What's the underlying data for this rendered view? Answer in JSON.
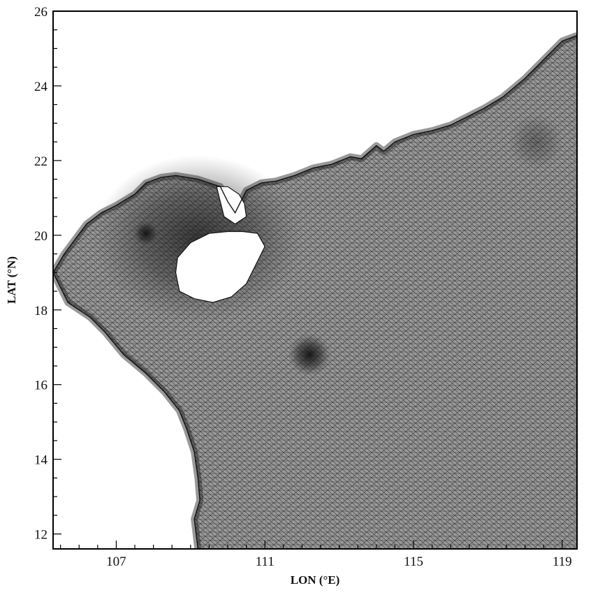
{
  "map": {
    "x_axis": {
      "label": "LON (°E)",
      "min": 105.3,
      "max": 119.4,
      "major_ticks": [
        107,
        111,
        115,
        119
      ],
      "minor_step": 0.5
    },
    "y_axis": {
      "label": "LAT (°N)",
      "min": 11.6,
      "max": 26,
      "major_ticks": [
        12,
        14,
        16,
        18,
        20,
        22,
        24,
        26
      ],
      "minor_step": 0.5
    },
    "mesh": {
      "type": "unstructured triangular grid",
      "line_color": "#2a2a2a",
      "water_fill": "#8c8c8c",
      "land_fill": "#ffffff",
      "refinement_centers": [
        {
          "lon": 107.8,
          "lat": 20.05
        },
        {
          "lon": 112.2,
          "lat": 16.8
        },
        {
          "lon": 118.3,
          "lat": 22.5
        }
      ]
    },
    "coastline_north": [
      [
        119.4,
        25.35
      ],
      [
        119.0,
        25.2
      ],
      [
        118.7,
        24.9
      ],
      [
        118.4,
        24.6
      ],
      [
        118.0,
        24.2
      ],
      [
        117.4,
        23.7
      ],
      [
        116.9,
        23.4
      ],
      [
        116.5,
        23.2
      ],
      [
        116.0,
        22.95
      ],
      [
        115.5,
        22.8
      ],
      [
        115.0,
        22.7
      ],
      [
        114.5,
        22.5
      ],
      [
        114.2,
        22.25
      ],
      [
        114.0,
        22.4
      ],
      [
        113.6,
        22.05
      ],
      [
        113.3,
        22.1
      ],
      [
        112.8,
        21.9
      ],
      [
        112.3,
        21.8
      ],
      [
        111.8,
        21.6
      ],
      [
        111.3,
        21.45
      ],
      [
        110.9,
        21.4
      ],
      [
        110.5,
        21.2
      ],
      [
        110.2,
        20.6
      ],
      [
        110.0,
        20.9
      ],
      [
        109.8,
        21.3
      ],
      [
        109.2,
        21.5
      ],
      [
        108.6,
        21.6
      ],
      [
        108.2,
        21.55
      ],
      [
        107.8,
        21.4
      ],
      [
        107.5,
        21.1
      ],
      [
        107.0,
        20.8
      ],
      [
        106.6,
        20.6
      ],
      [
        106.2,
        20.3
      ],
      [
        105.9,
        19.9
      ],
      [
        105.6,
        19.5
      ],
      [
        105.3,
        19.0
      ]
    ],
    "coastline_west": [
      [
        105.3,
        19.0
      ],
      [
        105.7,
        18.2
      ],
      [
        106.3,
        17.8
      ],
      [
        106.7,
        17.4
      ],
      [
        107.2,
        16.8
      ],
      [
        107.8,
        16.3
      ],
      [
        108.3,
        15.8
      ],
      [
        108.7,
        15.3
      ],
      [
        108.9,
        14.8
      ],
      [
        109.1,
        14.2
      ],
      [
        109.2,
        13.5
      ],
      [
        109.25,
        12.9
      ],
      [
        109.1,
        12.4
      ],
      [
        109.2,
        11.6
      ]
    ],
    "hainan_island": [
      [
        108.6,
        19.0
      ],
      [
        108.65,
        19.4
      ],
      [
        109.0,
        19.8
      ],
      [
        109.5,
        20.05
      ],
      [
        110.0,
        20.1
      ],
      [
        110.4,
        20.1
      ],
      [
        110.8,
        20.05
      ],
      [
        111.0,
        19.7
      ],
      [
        110.75,
        19.2
      ],
      [
        110.5,
        18.7
      ],
      [
        110.1,
        18.35
      ],
      [
        109.6,
        18.2
      ],
      [
        109.1,
        18.3
      ],
      [
        108.7,
        18.5
      ]
    ],
    "leizhou_peninsula": [
      [
        109.7,
        21.3
      ],
      [
        109.9,
        20.5
      ],
      [
        110.2,
        20.3
      ],
      [
        110.5,
        20.5
      ],
      [
        110.45,
        20.85
      ],
      [
        110.3,
        21.1
      ],
      [
        110.0,
        21.3
      ]
    ]
  }
}
